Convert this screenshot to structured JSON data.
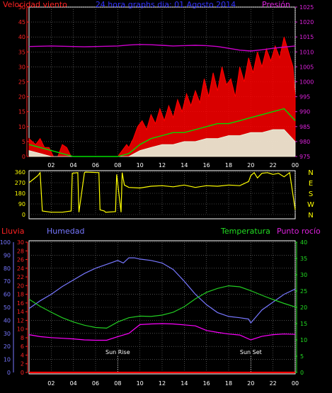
{
  "colors": {
    "background": "#000000",
    "grid": "#7a7a7a",
    "wind_gust": "#ff0000",
    "wind_avg": "#00dd00",
    "wind_min": "#e8ffe8",
    "pressure": "#cc00cc",
    "direction": "#ffff00",
    "humidity": "#7777ff",
    "temperature": "#22cc22",
    "dew_point": "#ff00ff",
    "rain": "#ff0000",
    "axis_red": "#ff2222",
    "axis_blue": "#7777ff",
    "axis_green": "#22dd22",
    "axis_magenta": "#dd22dd",
    "text_yellow": "#ffff00",
    "text_blue": "#3333ff",
    "text_white": "#ffffff"
  },
  "chart_data": [
    {
      "type": "line",
      "panel": "wind",
      "header_left": "Velocidad viento",
      "title": "24 hora graphs dia: 01 Agosto 2014",
      "header_right": "Presión",
      "x_ticks": [
        "02",
        "04",
        "06",
        "08",
        "10",
        "12",
        "14",
        "16",
        "18",
        "20",
        "22",
        "00"
      ],
      "y_left_ticks": [
        "0",
        "5",
        "10",
        "15",
        "20",
        "25",
        "30",
        "35",
        "40",
        "45",
        "50"
      ],
      "y_left_range": [
        0,
        50
      ],
      "y_right_ticks": [
        "975",
        "980",
        "985",
        "990",
        "995",
        "1000",
        "1005",
        "1010",
        "1015",
        "1020",
        "1025"
      ],
      "y_right_range": [
        975,
        1025
      ],
      "grid": true,
      "series": [
        {
          "x": [
            0,
            0.6,
            1.0,
            1.4,
            1.8,
            2.2,
            2.6,
            3.0,
            3.4,
            3.8,
            4.2,
            4.6,
            5.0,
            5.4,
            5.8,
            6.2,
            6.6,
            7.0,
            7.4,
            7.8,
            8.0,
            8.4,
            8.8,
            9.0,
            9.4,
            9.8,
            10.2,
            10.6,
            11.0,
            11.4,
            11.8,
            12.2,
            12.6,
            13.0,
            13.4,
            13.8,
            14.2,
            14.6,
            15.0,
            15.4,
            15.8,
            16.2,
            16.6,
            17.0,
            17.4,
            17.8,
            18.2,
            18.6,
            19.0,
            19.4,
            19.8,
            20.2,
            20.6,
            21.0,
            21.4,
            21.8,
            22.2,
            22.6,
            23.0,
            23.4,
            23.8,
            24.0
          ],
          "y": [
            6,
            4,
            6,
            3,
            3,
            0,
            0,
            4,
            3,
            0,
            0,
            0,
            0,
            0,
            0,
            0,
            0,
            0,
            0,
            0,
            0,
            2,
            4,
            3,
            6,
            10,
            12,
            9,
            14,
            11,
            16,
            12,
            17,
            13,
            19,
            15,
            21,
            17,
            22,
            18,
            26,
            20,
            28,
            22,
            30,
            24,
            26,
            20,
            30,
            25,
            33,
            28,
            35,
            30,
            36,
            32,
            37,
            33,
            40,
            35,
            30,
            20
          ]
        },
        {
          "x": [
            0,
            1,
            2,
            3,
            4,
            5,
            6,
            7,
            8,
            9,
            10,
            11,
            12,
            13,
            14,
            15,
            16,
            17,
            18,
            19,
            20,
            21,
            22,
            23,
            24
          ],
          "y": [
            4,
            3,
            2,
            1,
            0,
            0,
            0,
            0,
            0,
            1,
            4,
            6,
            7,
            8,
            8,
            9,
            10,
            11,
            11,
            12,
            13,
            14,
            15,
            16,
            12
          ]
        },
        {
          "x": [
            0,
            1,
            2,
            3,
            4,
            5,
            6,
            7,
            8,
            9,
            10,
            11,
            12,
            13,
            14,
            15,
            16,
            17,
            18,
            19,
            20,
            21,
            22,
            23,
            24
          ],
          "y": [
            2,
            1,
            0,
            0,
            0,
            0,
            0,
            0,
            0,
            0,
            2,
            3,
            4,
            4,
            5,
            5,
            6,
            6,
            7,
            7,
            8,
            8,
            9,
            9,
            5
          ]
        },
        {
          "x": [
            0,
            1,
            2,
            3,
            4,
            5,
            6,
            7,
            8,
            9,
            10,
            11,
            12,
            13,
            14,
            15,
            16,
            17,
            18,
            19,
            20,
            21,
            22,
            23,
            24
          ],
          "y": [
            1011.8,
            1011.9,
            1012.0,
            1011.9,
            1011.8,
            1011.7,
            1011.8,
            1011.9,
            1012.0,
            1012.3,
            1012.5,
            1012.4,
            1012.2,
            1012.0,
            1012.1,
            1012.2,
            1012.1,
            1011.8,
            1011.2,
            1010.6,
            1010.3,
            1010.7,
            1011.2,
            1011.6,
            1012.0
          ]
        }
      ]
    },
    {
      "type": "line",
      "panel": "direction",
      "x_ticks": [],
      "y_left_ticks": [
        "0",
        "90",
        "180",
        "270",
        "360"
      ],
      "y_left_range": [
        0,
        360
      ],
      "y_right_ticks": [
        "N",
        "W",
        "S",
        "E",
        "N"
      ],
      "series": [
        {
          "x": [
            0,
            0.4,
            0.8,
            1.0,
            1.2,
            2.0,
            3.0,
            3.8,
            3.9,
            4.4,
            4.5,
            5.0,
            5.1,
            6.3,
            6.4,
            6.8,
            6.9,
            7.8,
            7.9,
            8.3,
            8.4,
            8.6,
            9.0,
            10.0,
            11.0,
            12.0,
            13.0,
            14.0,
            15.0,
            16.0,
            17.0,
            18.0,
            19.0,
            19.8,
            20.0,
            20.3,
            20.6,
            21.0,
            21.5,
            22.0,
            22.5,
            23.0,
            23.5,
            24.0
          ],
          "y": [
            270,
            300,
            330,
            355,
            30,
            20,
            20,
            30,
            350,
            355,
            20,
            355,
            360,
            355,
            40,
            30,
            20,
            25,
            340,
            20,
            355,
            250,
            230,
            225,
            240,
            245,
            235,
            250,
            230,
            245,
            240,
            250,
            245,
            280,
            330,
            355,
            310,
            350,
            355,
            340,
            350,
            320,
            355,
            40
          ]
        }
      ]
    },
    {
      "type": "line",
      "panel": "climate",
      "header_labels": [
        "Lluvia",
        "Humedad",
        "Temperatura",
        "Punto rocío"
      ],
      "x_ticks": [
        "02",
        "04",
        "06",
        "08",
        "10",
        "12",
        "14",
        "16",
        "18",
        "20",
        "22",
        "00"
      ],
      "y_humidity_ticks": [
        "0",
        "10",
        "20",
        "30",
        "40",
        "50",
        "60",
        "70",
        "80",
        "90",
        "100"
      ],
      "y_humidity_range": [
        0,
        100
      ],
      "y_rain_ticks": [
        "0",
        "2",
        "4",
        "6",
        "8",
        "10",
        "12",
        "14",
        "16",
        "18",
        "20",
        "22",
        "24",
        "26",
        "28",
        "30"
      ],
      "y_rain_range": [
        0,
        30
      ],
      "y_temp_ticks": [
        "0",
        "5",
        "10",
        "15",
        "20",
        "25",
        "30",
        "35",
        "40"
      ],
      "y_temp_range": [
        0,
        40
      ],
      "annotations": [
        {
          "label": "Sun Rise",
          "x": 8.0
        },
        {
          "label": "Sun Set",
          "x": 20.0
        }
      ],
      "grid": true,
      "series": [
        {
          "x": [
            0,
            1,
            2,
            3,
            4,
            5,
            6,
            7,
            8,
            8.5,
            9,
            9.5,
            10,
            11,
            12,
            13,
            14,
            15,
            16,
            17,
            18,
            19,
            19.8,
            20,
            21,
            22,
            23,
            24
          ],
          "y": [
            49,
            55,
            60,
            66,
            71,
            76,
            80,
            83,
            86,
            84,
            88,
            88,
            87,
            86,
            84,
            79,
            70,
            60,
            52,
            46,
            43,
            42,
            41,
            38,
            48,
            54,
            60,
            64
          ]
        },
        {
          "x": [
            0,
            1,
            2,
            3,
            4,
            5,
            6,
            7,
            8,
            9,
            10,
            11,
            12,
            13,
            14,
            15,
            16,
            17,
            18,
            19,
            20,
            21,
            22,
            23,
            24
          ],
          "y": [
            22.5,
            20.3,
            18.5,
            16.8,
            15.5,
            14.5,
            13.8,
            13.6,
            15.5,
            16.8,
            17.3,
            17.2,
            17.6,
            18.5,
            20.2,
            22.6,
            24.6,
            25.8,
            26.6,
            26.3,
            25.1,
            23.7,
            22.4,
            21.2,
            20.1
          ]
        },
        {
          "x": [
            0,
            1,
            2,
            3,
            4,
            5,
            6,
            7,
            8,
            9,
            10,
            11,
            12,
            13,
            14,
            15,
            16,
            17,
            18,
            19,
            20,
            21,
            22,
            23,
            24
          ],
          "y": [
            11.6,
            11.0,
            10.7,
            10.5,
            10.3,
            10.0,
            9.9,
            9.9,
            11.0,
            12.0,
            14.7,
            14.9,
            15.0,
            14.9,
            14.6,
            14.3,
            12.9,
            12.3,
            11.8,
            11.5,
            10.0,
            11.1,
            11.6,
            11.8,
            11.7
          ]
        },
        {
          "x": [
            0,
            24
          ],
          "y": [
            0,
            0
          ]
        }
      ]
    }
  ]
}
